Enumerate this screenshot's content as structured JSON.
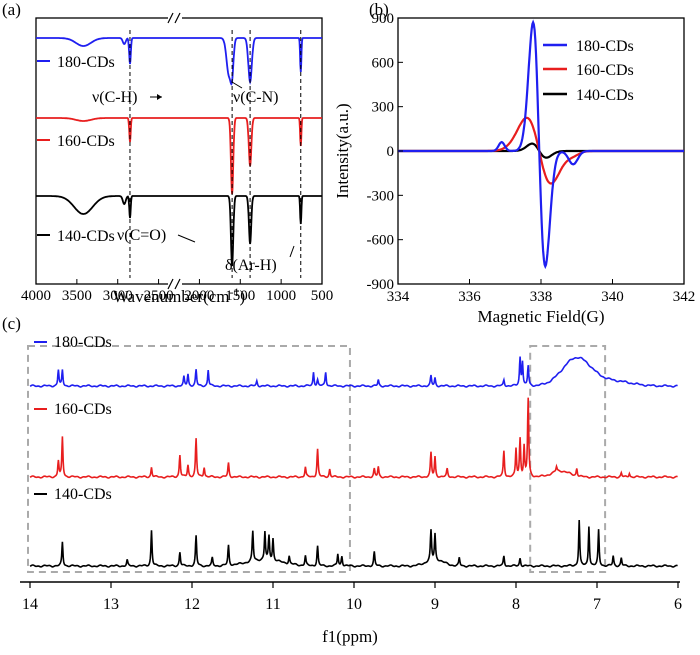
{
  "panel_labels": {
    "a": "(a)",
    "b": "(b)",
    "c": "(c)"
  },
  "colors": {
    "blue": "#1f1ff0",
    "red": "#e81e1e",
    "black": "#000000",
    "dash_gray": "#aaaaaa"
  },
  "chart_data": [
    {
      "id": "a",
      "type": "line",
      "title": "",
      "xlabel": "Wavenumber(cm",
      "xlabel_sup": "-1",
      "xlabel_close": ")",
      "ylabel": "",
      "xlim": [
        4000,
        500
      ],
      "axis_break_label": "//",
      "x_ticks": [
        "4000",
        "3500",
        "3000",
        "2500",
        "2000",
        "1500",
        "1000",
        "500"
      ],
      "legend": [
        "180-CDs",
        "160-CDs",
        "140-CDs"
      ],
      "series": [
        {
          "name": "180-CDs",
          "color": "blue",
          "peaks_cm1": [
            3420,
            2920,
            2850,
            1640,
            1600,
            1380,
            760
          ]
        },
        {
          "name": "160-CDs",
          "color": "red",
          "peaks_cm1": [
            2850,
            1600,
            1380,
            760
          ]
        },
        {
          "name": "140-CDs",
          "color": "black",
          "peaks_cm1": [
            3420,
            2920,
            2850,
            1600,
            1380,
            760
          ]
        }
      ],
      "annotations": [
        "ν(C-H)",
        "ν(C-N)",
        "ν(C=O)",
        "δ(Ar-H)"
      ],
      "marker_lines_cm1": [
        2850,
        1600,
        1380,
        760
      ]
    },
    {
      "id": "b",
      "type": "line",
      "title": "",
      "xlabel": "Magnetic Field(G)",
      "ylabel": "Intensity(a.u.)",
      "xlim": [
        334,
        342
      ],
      "ylim": [
        -900,
        900
      ],
      "x_ticks": [
        "334",
        "336",
        "338",
        "340",
        "342"
      ],
      "y_ticks": [
        "900",
        "600",
        "300",
        "0",
        "-300",
        "-600",
        "-900"
      ],
      "legend": [
        "180-CDs",
        "160-CDs",
        "140-CDs"
      ],
      "series": [
        {
          "name": "180-CDs",
          "color": "blue",
          "center_G": 337.95,
          "max": 870,
          "min": -780,
          "pos_max_G": 337.78,
          "pos_min_G": 338.12
        },
        {
          "name": "160-CDs",
          "color": "red",
          "center_G": 337.95,
          "max": 225,
          "min": -220,
          "pos_max_G": 337.6,
          "pos_min_G": 338.28
        },
        {
          "name": "140-CDs",
          "color": "black",
          "center_G": 337.95,
          "max": 50,
          "min": -45,
          "pos_max_G": 337.75,
          "pos_min_G": 338.15
        }
      ]
    },
    {
      "id": "c",
      "type": "line",
      "title": "",
      "xlabel": "f1(ppm)",
      "ylabel": "",
      "xlim": [
        14,
        6
      ],
      "x_ticks": [
        "14",
        "13",
        "12",
        "11",
        "10",
        "9",
        "8",
        "7",
        "6"
      ],
      "legend": [
        "180-CDs",
        "160-CDs",
        "140-CDs"
      ],
      "highlight_regions_ppm": [
        [
          14,
          10.05
        ],
        [
          7.8,
          6.9
        ]
      ],
      "series": [
        {
          "name": "180-CDs",
          "color": "blue",
          "peaks": [
            [
              13.65,
              16
            ],
            [
              13.6,
              16
            ],
            [
              12.1,
              9
            ],
            [
              12.05,
              12
            ],
            [
              11.95,
              16
            ],
            [
              11.8,
              16
            ],
            [
              11.2,
              5
            ],
            [
              10.5,
              14
            ],
            [
              10.45,
              6
            ],
            [
              10.35,
              14
            ],
            [
              9.7,
              6
            ],
            [
              9.05,
              10
            ],
            [
              9.0,
              8
            ],
            [
              7.95,
              28
            ],
            [
              7.92,
              24
            ],
            [
              7.85,
              20
            ],
            [
              8.15,
              6
            ]
          ],
          "broad": [
            [
              7.25,
              0.25,
              28
            ],
            [
              6.8,
              0.3,
              5
            ]
          ]
        },
        {
          "name": "160-CDs",
          "color": "red",
          "peaks": [
            [
              13.65,
              16
            ],
            [
              13.6,
              40
            ],
            [
              12.5,
              10
            ],
            [
              12.15,
              22
            ],
            [
              12.05,
              12
            ],
            [
              11.95,
              38
            ],
            [
              11.85,
              10
            ],
            [
              11.55,
              14
            ],
            [
              10.6,
              10
            ],
            [
              10.45,
              28
            ],
            [
              10.3,
              8
            ],
            [
              9.75,
              8
            ],
            [
              9.7,
              10
            ],
            [
              9.05,
              24
            ],
            [
              9.0,
              20
            ],
            [
              8.85,
              8
            ],
            [
              8.15,
              26
            ],
            [
              8.0,
              28
            ],
            [
              7.95,
              38
            ],
            [
              7.9,
              30
            ],
            [
              7.85,
              78
            ],
            [
              7.5,
              5
            ],
            [
              7.25,
              8
            ],
            [
              6.7,
              4
            ],
            [
              6.6,
              4
            ]
          ],
          "broad": [
            [
              7.45,
              0.15,
              6
            ]
          ]
        },
        {
          "name": "140-CDs",
          "color": "black",
          "peaks": [
            [
              13.6,
              24
            ],
            [
              12.8,
              6
            ],
            [
              12.5,
              36
            ],
            [
              12.15,
              14
            ],
            [
              11.95,
              30
            ],
            [
              11.75,
              8
            ],
            [
              11.55,
              20
            ],
            [
              11.25,
              30
            ],
            [
              11.1,
              28
            ],
            [
              11.05,
              24
            ],
            [
              11.0,
              22
            ],
            [
              10.8,
              8
            ],
            [
              10.6,
              10
            ],
            [
              10.45,
              20
            ],
            [
              10.2,
              12
            ],
            [
              10.15,
              10
            ],
            [
              9.75,
              14
            ],
            [
              9.05,
              30
            ],
            [
              9.0,
              26
            ],
            [
              8.7,
              8
            ],
            [
              8.15,
              10
            ],
            [
              7.95,
              8
            ],
            [
              7.22,
              46
            ],
            [
              7.1,
              40
            ],
            [
              6.98,
              36
            ],
            [
              6.8,
              10
            ],
            [
              6.7,
              8
            ]
          ],
          "broad": [
            [
              11.1,
              0.3,
              6
            ],
            [
              9.0,
              0.15,
              6
            ]
          ]
        }
      ]
    }
  ]
}
